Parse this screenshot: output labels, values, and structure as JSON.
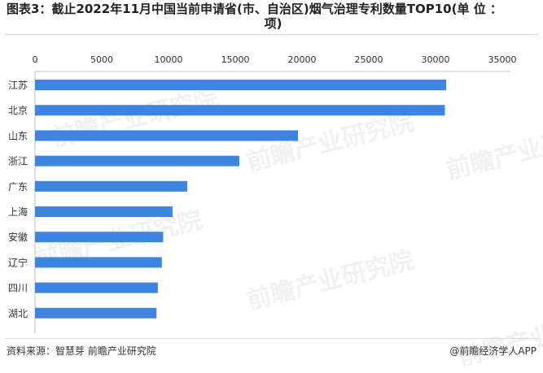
{
  "title_line1": "图表3：截止2022年11月中国当前申请省(市、自治区)烟气治理专利数量TOP10(单 位 ：",
  "title_line2": "项)",
  "source": "资料来源：智慧芽 前瞻产业研究院",
  "brand": "@前瞻经济学人APP",
  "watermark": "前瞻产业研究院",
  "colors": {
    "bar": "#3d85e0",
    "axis": "#bfbfbf",
    "text": "#333333"
  },
  "chart_data": {
    "type": "bar",
    "orientation": "horizontal",
    "categories": [
      "江苏",
      "北京",
      "山东",
      "浙江",
      "广东",
      "上海",
      "安徽",
      "辽宁",
      "四川",
      "湖北"
    ],
    "values": [
      30800,
      30700,
      19700,
      15300,
      11400,
      10300,
      9600,
      9500,
      9200,
      9100
    ],
    "xlim": [
      0,
      35000
    ],
    "xticks": [
      0,
      5000,
      10000,
      15000,
      20000,
      25000,
      30000,
      35000
    ],
    "x_axis_position": "top",
    "grid": false,
    "legend": "none"
  }
}
